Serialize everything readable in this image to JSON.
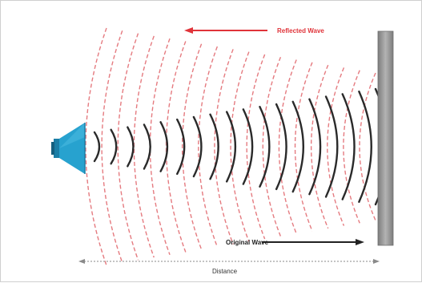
{
  "labels": {
    "reflected_wave": "Reflected Wave",
    "original_wave": "Original Wave",
    "distance": "Distance"
  },
  "colors": {
    "reflected": "#e0343a",
    "reflected_dash": "#e57b80",
    "original": "#2a2a2a",
    "speaker": "#27a2cf",
    "speaker_dark": "#1b7ea6",
    "wall": "#9a9a9a",
    "distance_arrow": "#8a8a8a"
  },
  "icons": {
    "speaker": "megaphone-icon",
    "wall": "reflecting-wall"
  }
}
